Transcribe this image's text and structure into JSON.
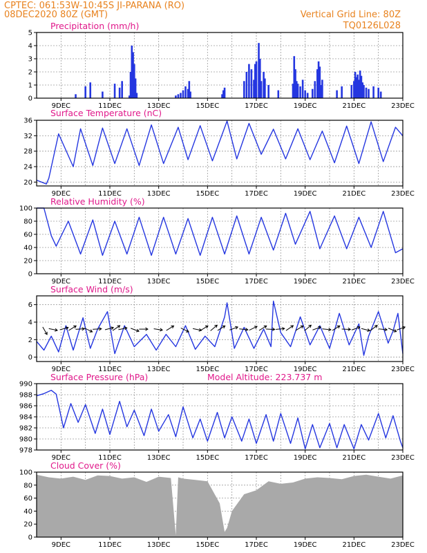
{
  "header": {
    "line1": "CPTEC:    061:53W-10:45S   JI-PARANA (RO)",
    "line2": "08DEC2020 80Z (GMT)",
    "right1": "Vertical Grid Line: 80Z",
    "right2": "TQ0126L028"
  },
  "colors": {
    "header": "#e8821e",
    "title": "#e0188a",
    "line": "#2436e0",
    "cloud": "#a9a9a9",
    "grid": "#9a9a9a"
  },
  "x_ticks": [
    "9DEC",
    "11DEC",
    "13DEC",
    "15DEC",
    "17DEC",
    "19DEC",
    "21DEC",
    "23DEC"
  ],
  "chart_data": [
    {
      "id": "precip",
      "type": "bar",
      "title": "Precipitation (mm/h)",
      "ylim": [
        0,
        5
      ],
      "yticks": [
        0,
        1,
        2,
        3,
        4,
        5
      ],
      "x_range_days": [
        8.0,
        23.0
      ],
      "x_unit": "day of DEC 2020",
      "series": [
        {
          "x": [
            9.6,
            10.0,
            10.2,
            10.7,
            11.2,
            11.4,
            11.5,
            11.8,
            11.85,
            11.9,
            11.95,
            12.0,
            12.05,
            12.1,
            13.7,
            13.8,
            13.9,
            14.0,
            14.1,
            14.2,
            14.25,
            14.3,
            15.6,
            15.65,
            15.7,
            16.5,
            16.6,
            16.7,
            16.8,
            16.9,
            16.95,
            17.0,
            17.1,
            17.15,
            17.2,
            17.3,
            17.35,
            17.5,
            17.9,
            18.5,
            18.55,
            18.6,
            18.65,
            18.7,
            18.8,
            18.9,
            19.0,
            19.1,
            19.3,
            19.4,
            19.5,
            19.55,
            19.6,
            19.65,
            19.7,
            20.3,
            20.5,
            20.9,
            21.0,
            21.05,
            21.1,
            21.15,
            21.2,
            21.25,
            21.3,
            21.35,
            21.4,
            21.5,
            21.6,
            21.8,
            22.0,
            22.1
          ],
          "values": [
            0.3,
            0.9,
            1.2,
            0.5,
            1.1,
            0.8,
            1.3,
            0.2,
            2.0,
            4.0,
            3.5,
            2.6,
            1.5,
            0.4,
            0.2,
            0.3,
            0.4,
            0.6,
            0.9,
            0.7,
            1.3,
            0.5,
            0.3,
            0.6,
            0.8,
            1.3,
            2.0,
            2.6,
            2.2,
            1.4,
            2.6,
            2.8,
            4.2,
            3.0,
            1.3,
            2.0,
            1.5,
            1.0,
            0.6,
            1.1,
            3.2,
            2.2,
            1.3,
            1.1,
            0.9,
            1.4,
            0.6,
            0.4,
            0.7,
            1.3,
            2.2,
            2.8,
            2.4,
            1.0,
            1.4,
            0.6,
            0.9,
            1.0,
            1.3,
            2.0,
            1.6,
            1.8,
            1.4,
            2.1,
            1.7,
            1.2,
            1.0,
            0.8,
            0.7,
            0.9,
            0.8,
            0.5
          ]
        }
      ]
    },
    {
      "id": "temp",
      "type": "line",
      "title": "Surface Temperature (nC)",
      "ylim": [
        19,
        36
      ],
      "yticks": [
        20,
        24,
        28,
        32,
        36
      ],
      "x_range_days": [
        8.0,
        23.0
      ],
      "series": [
        {
          "x": [
            8.0,
            8.4,
            8.5,
            8.9,
            9.5,
            9.8,
            10.3,
            10.7,
            11.2,
            11.7,
            12.2,
            12.7,
            13.2,
            13.8,
            14.2,
            14.7,
            15.2,
            15.8,
            16.2,
            16.7,
            17.2,
            17.7,
            18.2,
            18.7,
            19.2,
            19.7,
            20.2,
            20.7,
            21.2,
            21.7,
            22.2,
            22.7,
            23.0
          ],
          "values": [
            20.5,
            19.5,
            21.0,
            32.5,
            24.0,
            33.8,
            24.3,
            34.0,
            24.8,
            33.8,
            24.3,
            34.8,
            24.8,
            34.2,
            25.8,
            34.6,
            25.5,
            35.8,
            26.0,
            35.2,
            27.2,
            33.7,
            26.0,
            33.8,
            25.8,
            33.2,
            25.0,
            34.5,
            24.8,
            35.6,
            25.3,
            34.2,
            32.0
          ]
        }
      ]
    },
    {
      "id": "rh",
      "type": "line",
      "title": "Relative Humidity (%)",
      "ylim": [
        0,
        100
      ],
      "yticks": [
        0,
        20,
        40,
        60,
        80,
        100
      ],
      "x_range_days": [
        8.0,
        23.0
      ],
      "series": [
        {
          "x": [
            8.0,
            8.3,
            8.6,
            8.8,
            9.3,
            9.8,
            10.3,
            10.7,
            11.2,
            11.7,
            12.2,
            12.7,
            13.2,
            13.7,
            14.2,
            14.7,
            15.2,
            15.7,
            16.2,
            16.7,
            17.2,
            17.7,
            18.2,
            18.6,
            19.2,
            19.6,
            20.2,
            20.7,
            21.2,
            21.7,
            22.2,
            22.7,
            23.0
          ],
          "values": [
            100,
            100,
            58,
            42,
            80,
            30,
            82,
            28,
            80,
            30,
            86,
            28,
            86,
            30,
            84,
            28,
            86,
            30,
            88,
            30,
            86,
            36,
            92,
            45,
            95,
            38,
            88,
            38,
            86,
            40,
            95,
            32,
            38
          ]
        }
      ]
    },
    {
      "id": "wind",
      "type": "line",
      "title": "Surface Wind (m/s)",
      "ylim": [
        -0.5,
        7
      ],
      "yticks": [
        0,
        2,
        4,
        6
      ],
      "x_range_days": [
        8.0,
        23.0
      ],
      "series": [
        {
          "x": [
            8.0,
            8.3,
            8.6,
            8.9,
            9.2,
            9.5,
            9.9,
            10.2,
            10.5,
            10.9,
            11.2,
            11.6,
            12.0,
            12.5,
            12.9,
            13.3,
            13.7,
            14.1,
            14.5,
            14.9,
            15.3,
            15.7,
            15.8,
            16.1,
            16.5,
            16.9,
            17.3,
            17.6,
            17.7,
            18.0,
            18.4,
            18.8,
            19.2,
            19.6,
            20.0,
            20.4,
            20.8,
            21.2,
            21.4,
            21.6,
            22.0,
            22.4,
            22.6,
            22.8,
            23.0
          ],
          "values": [
            1.8,
            0.8,
            2.4,
            0.6,
            3.6,
            0.8,
            4.5,
            1.0,
            3.2,
            5.2,
            0.4,
            3.6,
            1.2,
            2.6,
            0.8,
            2.6,
            1.2,
            3.6,
            0.9,
            2.4,
            1.2,
            4.6,
            6.2,
            1.0,
            3.4,
            1.0,
            3.2,
            1.2,
            6.4,
            2.8,
            1.2,
            4.6,
            1.4,
            3.6,
            1.0,
            5.0,
            1.4,
            3.8,
            0.2,
            2.4,
            5.2,
            1.6,
            3.0,
            5.0,
            0.4
          ]
        }
      ],
      "arrows": [
        [
          8.3,
          1.05
        ],
        [
          8.6,
          0.2
        ],
        [
          9.05,
          -0.25
        ],
        [
          9.4,
          -0.55
        ],
        [
          9.7,
          -0.05
        ],
        [
          10.05,
          0.45
        ],
        [
          10.4,
          -0.05
        ],
        [
          10.9,
          -0.25
        ],
        [
          11.2,
          -0.6
        ],
        [
          11.45,
          -0.2
        ],
        [
          11.95,
          0.35
        ],
        [
          12.3,
          0.0
        ],
        [
          12.9,
          0.15
        ],
        [
          13.4,
          -0.55
        ],
        [
          14.0,
          0.45
        ],
        [
          14.5,
          0.2
        ],
        [
          14.8,
          -0.55
        ],
        [
          15.2,
          -0.7
        ],
        [
          15.5,
          -0.55
        ],
        [
          16.0,
          -0.35
        ],
        [
          16.4,
          0.1
        ],
        [
          16.8,
          -0.45
        ],
        [
          17.2,
          -0.55
        ],
        [
          17.5,
          0.05
        ],
        [
          17.9,
          -0.1
        ],
        [
          18.3,
          -0.6
        ],
        [
          18.7,
          -0.55
        ],
        [
          19.05,
          -0.7
        ],
        [
          19.4,
          -0.35
        ],
        [
          19.8,
          0.1
        ],
        [
          20.2,
          -0.55
        ],
        [
          20.6,
          0.05
        ],
        [
          21.0,
          -0.35
        ],
        [
          21.4,
          0.25
        ],
        [
          21.75,
          -0.65
        ],
        [
          22.1,
          0.1
        ],
        [
          22.5,
          0.4
        ],
        [
          22.85,
          -0.35
        ]
      ]
    },
    {
      "id": "pres",
      "type": "line",
      "title": "Surface Pressure (hPa)",
      "annotation": "Model Altitude: 223.737  m",
      "ylim": [
        978,
        990
      ],
      "yticks": [
        978,
        980,
        982,
        984,
        986,
        988,
        990
      ],
      "x_range_days": [
        8.0,
        23.0
      ],
      "series": [
        {
          "x": [
            8.0,
            8.3,
            8.6,
            8.8,
            9.1,
            9.4,
            9.7,
            10.0,
            10.4,
            10.7,
            11.0,
            11.4,
            11.7,
            12.0,
            12.4,
            12.7,
            13.0,
            13.4,
            13.7,
            14.0,
            14.4,
            14.7,
            15.0,
            15.4,
            15.7,
            16.0,
            16.4,
            16.7,
            17.0,
            17.4,
            17.7,
            18.0,
            18.4,
            18.7,
            19.0,
            19.3,
            19.6,
            20.0,
            20.3,
            20.6,
            21.0,
            21.3,
            21.6,
            22.0,
            22.3,
            22.6,
            22.9,
            23.0
          ],
          "values": [
            987.8,
            988.2,
            988.8,
            988.1,
            982.0,
            986.4,
            983.0,
            986.2,
            981.0,
            985.4,
            980.8,
            986.8,
            982.2,
            985.2,
            980.6,
            985.4,
            981.4,
            984.4,
            980.4,
            985.8,
            980.2,
            983.6,
            979.6,
            984.8,
            980.2,
            984.0,
            979.6,
            983.6,
            979.2,
            984.4,
            979.6,
            984.6,
            979.2,
            983.8,
            978.2,
            982.6,
            978.4,
            982.8,
            978.4,
            982.6,
            978.2,
            982.6,
            979.8,
            984.6,
            980.2,
            984.2,
            979.6,
            978.4
          ]
        }
      ]
    },
    {
      "id": "cloud",
      "type": "area",
      "title": "Cloud Cover (%)",
      "ylim": [
        0,
        100
      ],
      "yticks": [
        0,
        20,
        40,
        60,
        80,
        100
      ],
      "x_range_days": [
        8.0,
        23.0
      ],
      "series": [
        {
          "x": [
            8.0,
            8.5,
            9.0,
            9.5,
            10.0,
            10.5,
            11.0,
            11.5,
            12.0,
            12.5,
            13.0,
            13.5,
            13.7,
            13.8,
            14.0,
            14.5,
            15.0,
            15.5,
            15.7,
            15.8,
            16.0,
            16.5,
            17.0,
            17.5,
            18.0,
            18.5,
            19.0,
            19.5,
            20.0,
            20.5,
            21.0,
            21.5,
            22.0,
            22.5,
            23.0
          ],
          "values": [
            96,
            92,
            90,
            93,
            88,
            95,
            94,
            90,
            92,
            85,
            93,
            91,
            3,
            92,
            90,
            88,
            86,
            52,
            8,
            14,
            40,
            66,
            72,
            86,
            82,
            84,
            90,
            92,
            91,
            89,
            94,
            96,
            93,
            90,
            95
          ]
        }
      ]
    }
  ]
}
